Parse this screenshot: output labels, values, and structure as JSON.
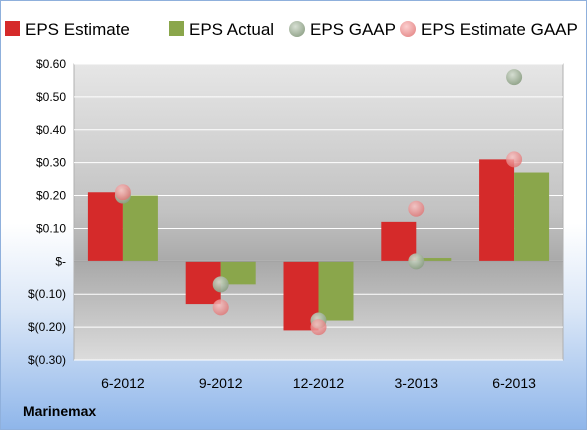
{
  "company": "Marinemax",
  "colors": {
    "eps_estimate": "#d52a2a",
    "eps_actual": "#8aa64b",
    "eps_gaap": "#9aad92",
    "eps_estimate_gaap": "#ef8b8b"
  },
  "chart_data": {
    "type": "bar",
    "categories": [
      "6-2012",
      "9-2012",
      "12-2012",
      "3-2013",
      "6-2013"
    ],
    "series": [
      {
        "name": "EPS Estimate",
        "kind": "bar",
        "color": "#d52a2a",
        "values": [
          0.21,
          -0.13,
          -0.21,
          0.12,
          0.31
        ]
      },
      {
        "name": "EPS Actual",
        "kind": "bar",
        "color": "#8aa64b",
        "values": [
          0.2,
          -0.07,
          -0.18,
          0.01,
          0.27
        ]
      },
      {
        "name": "EPS GAAP",
        "kind": "point",
        "color": "#9aad92",
        "values": [
          0.2,
          -0.07,
          -0.18,
          0.0,
          0.56
        ]
      },
      {
        "name": "EPS Estimate GAAP",
        "kind": "point",
        "color": "#ef8b8b",
        "values": [
          0.21,
          -0.14,
          -0.2,
          0.16,
          0.31
        ]
      }
    ],
    "yticks": [
      "$0.60",
      "$0.50",
      "$0.40",
      "$0.30",
      "$0.20",
      "$0.10",
      "$-",
      "$(0.10)",
      "$(0.20)",
      "$(0.30)"
    ],
    "ylim": [
      -0.3,
      0.6
    ],
    "legend_position": "top",
    "grid": true
  }
}
